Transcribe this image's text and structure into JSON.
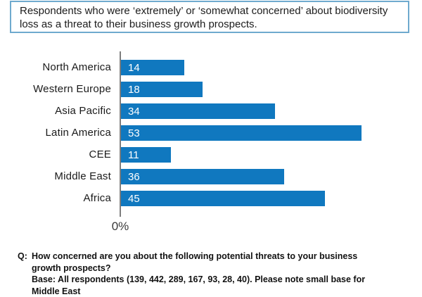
{
  "title": "Respondents who were ‘extremely’ or ‘somewhat concerned’ about biodiversity loss as a threat to their business growth prospects.",
  "chart_data": {
    "type": "bar",
    "orientation": "horizontal",
    "title": "Respondents who were ‘extremely’ or ‘somewhat concerned’ about biodiversity loss as a threat to their business growth prospects.",
    "categories": [
      "North America",
      "Western Europe",
      "Asia Pacific",
      "Latin America",
      "CEE",
      "Middle East",
      "Africa"
    ],
    "values": [
      14,
      18,
      34,
      53,
      11,
      36,
      45
    ],
    "unit": "%",
    "xlabel": "",
    "ylabel": "",
    "xlim": [
      0,
      62
    ],
    "axis_zero_label": "0%",
    "value_labels_inside_bars": true,
    "grid": false,
    "legend": false,
    "bar_color": "#1078BF",
    "axis_color": "#7D7D7D",
    "value_label_color": "#FFFFFF"
  },
  "footnote": {
    "prefix": "Q:",
    "question": "How concerned are you about the following potential threats to your business growth prospects?",
    "base": "Base: All respondents (139, 442, 289, 167, 93, 28, 40). Please note small base for Middle East"
  },
  "style": {
    "title_border_color": "#6FAACE"
  }
}
